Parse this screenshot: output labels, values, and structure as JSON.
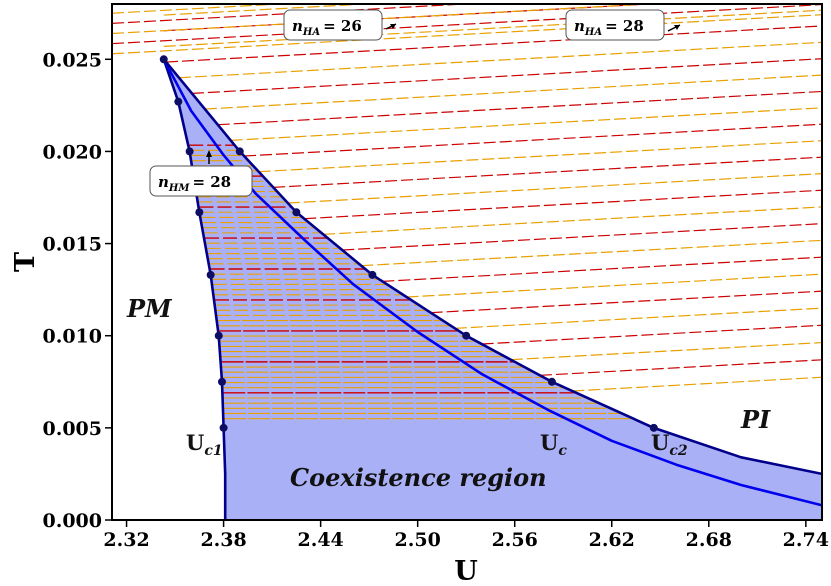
{
  "chart_data": {
    "type": "line",
    "title": "",
    "xlabel": "U",
    "ylabel": "T",
    "xlim": [
      2.311,
      2.75
    ],
    "ylim": [
      0.0,
      0.028
    ],
    "xticks": [
      "2.32",
      "2.38",
      "2.44",
      "2.50",
      "2.56",
      "2.62",
      "2.68",
      "2.74"
    ],
    "yticks": [
      "0.000",
      "0.005",
      "0.010",
      "0.015",
      "0.020",
      "0.025"
    ],
    "xtick_values": [
      2.32,
      2.38,
      2.44,
      2.5,
      2.56,
      2.62,
      2.68,
      2.74
    ],
    "ytick_values": [
      0.0,
      0.005,
      0.01,
      0.015,
      0.02,
      0.025
    ],
    "series": [
      {
        "name": "Uc1",
        "color": "#00008b",
        "points": [
          [
            2.343,
            0.025
          ],
          [
            2.352,
            0.0227
          ],
          [
            2.359,
            0.02
          ],
          [
            2.365,
            0.0167
          ],
          [
            2.372,
            0.0133
          ],
          [
            2.377,
            0.01
          ],
          [
            2.379,
            0.0075
          ],
          [
            2.38,
            0.005
          ],
          [
            2.381,
            0.0025
          ],
          [
            2.381,
            0.0
          ]
        ]
      },
      {
        "name": "Uc",
        "color": "#0000ee",
        "points": [
          [
            2.343,
            0.025
          ],
          [
            2.36,
            0.0222
          ],
          [
            2.38,
            0.0198
          ],
          [
            2.4,
            0.0177
          ],
          [
            2.43,
            0.0152
          ],
          [
            2.46,
            0.0128
          ],
          [
            2.5,
            0.0102
          ],
          [
            2.54,
            0.0079
          ],
          [
            2.58,
            0.006
          ],
          [
            2.62,
            0.0043
          ],
          [
            2.66,
            0.003
          ],
          [
            2.7,
            0.0019
          ],
          [
            2.75,
            0.0008
          ]
        ]
      },
      {
        "name": "Uc2",
        "color": "#00008b",
        "points": [
          [
            2.343,
            0.025
          ],
          [
            2.39,
            0.02
          ],
          [
            2.425,
            0.0167
          ],
          [
            2.472,
            0.0133
          ],
          [
            2.53,
            0.01
          ],
          [
            2.583,
            0.0075
          ],
          [
            2.646,
            0.005
          ],
          [
            2.7,
            0.0034
          ],
          [
            2.75,
            0.0025
          ]
        ]
      }
    ],
    "markers": [
      [
        2.343,
        0.025
      ],
      [
        2.352,
        0.0227
      ],
      [
        2.359,
        0.02
      ],
      [
        2.365,
        0.0167
      ],
      [
        2.372,
        0.0133
      ],
      [
        2.377,
        0.01
      ],
      [
        2.379,
        0.0075
      ],
      [
        2.38,
        0.005
      ],
      [
        2.39,
        0.02
      ],
      [
        2.425,
        0.0167
      ],
      [
        2.472,
        0.0133
      ],
      [
        2.53,
        0.01
      ],
      [
        2.583,
        0.0075
      ],
      [
        2.646,
        0.005
      ]
    ],
    "coexistence_region": {
      "label": "Coexistence region",
      "color": "#aab0f5"
    },
    "dashed_levels": {
      "colors": [
        "#e8a000",
        "#cc0000"
      ],
      "hm_band": [
        0.0055,
        0.0205
      ],
      "ha_band": [
        0.007,
        0.0278
      ]
    },
    "region_labels": {
      "pm": "PM",
      "pi": "PI",
      "coexistence": "Coexistence region"
    },
    "curve_labels": {
      "uc1_main": "U",
      "uc1_sub": "c1",
      "uc_main": "U",
      "uc_sub": "c",
      "uc2_main": "U",
      "uc2_sub": "c2"
    },
    "annotations": [
      {
        "id": "nha26",
        "var": "n",
        "sub": "HA",
        "value": "= 26"
      },
      {
        "id": "nha28",
        "var": "n",
        "sub": "HA",
        "value": "= 28"
      },
      {
        "id": "nhm28",
        "var": "n",
        "sub": "HM",
        "value": "= 28"
      }
    ]
  }
}
